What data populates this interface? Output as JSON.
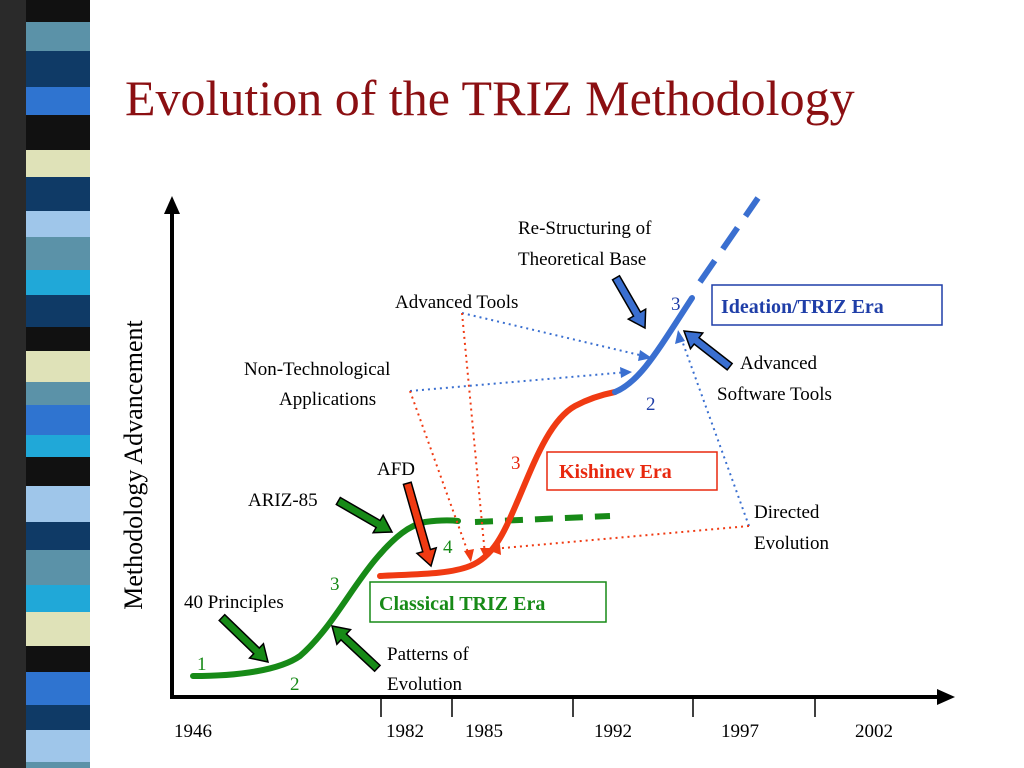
{
  "title": "Evolution of the TRIZ Methodology",
  "y_axis_label": "Methodology Advancement",
  "x_axis": {
    "ticks": [
      "1946",
      "1982",
      "1985",
      "1992",
      "1997",
      "2002"
    ]
  },
  "eras": {
    "classical": "Classical TRIZ Era",
    "kishinev": "Kishinev Era",
    "ideation": "Ideation/TRIZ Era"
  },
  "stage_numbers": {
    "classical": [
      "1",
      "2",
      "3",
      "4"
    ],
    "kishinev": [
      "3"
    ],
    "ideation": [
      "2",
      "3"
    ]
  },
  "annotations": {
    "restructuring_line1": "Re-Structuring of",
    "restructuring_line2": "Theoretical Base",
    "advanced_tools": "Advanced Tools",
    "non_tech_line1": "Non-Technological",
    "non_tech_line2": "Applications",
    "afd": "AFD",
    "ariz85": "ARIZ-85",
    "principles": "40 Principles",
    "patterns_line1": "Patterns of",
    "patterns_line2": "Evolution",
    "adv_software_line1": "Advanced",
    "adv_software_line2": "Software Tools",
    "directed_line1": "Directed",
    "directed_line2": "Evolution"
  },
  "colors": {
    "title": "#8b0f12",
    "classical_curve": "#178a17",
    "kishinev_curve": "#f03a12",
    "ideation_curve": "#3a6fd0",
    "classical_text": "#178a17",
    "kishinev_text": "#e8280f",
    "ideation_text": "#1f3ea8"
  },
  "sidebar_stripe_colors": [
    "#111111",
    "#5b92a8",
    "#0f3a66",
    "#2f74d0",
    "#dfe2b8",
    "#9fc6ea",
    "#20a8d8"
  ]
}
